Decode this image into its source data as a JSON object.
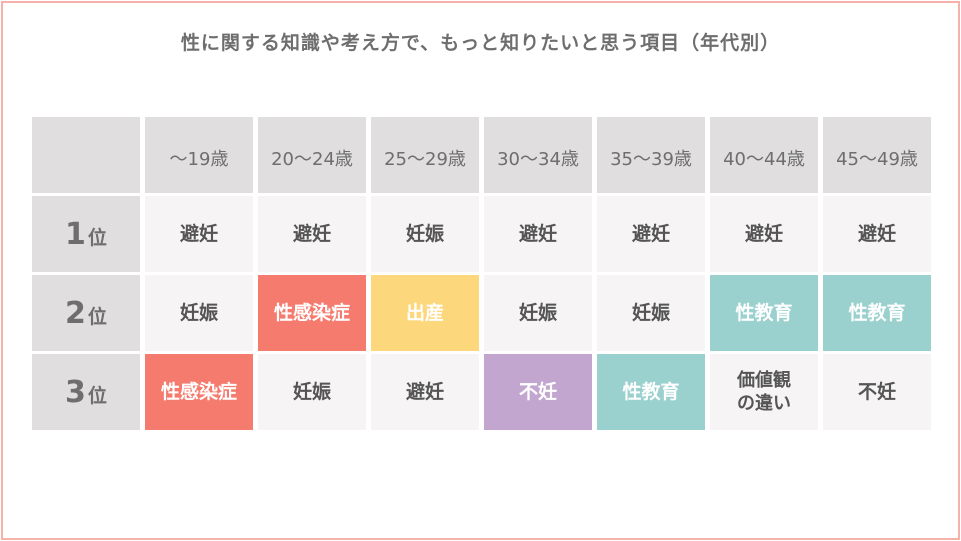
{
  "title": "性に関する知識や考え方で、もっと知りたいと思う項目（年代別）",
  "colors": {
    "border": "#f4b2aa",
    "header_bg": "#e0dede",
    "cell_bg": "#f6f4f4",
    "red": "#f57b6e",
    "yellow": "#fdd77b",
    "purple": "#c3a6d0",
    "teal": "#9ad1ce"
  },
  "columns": [
    "～19歳",
    "20～24歳",
    "25～29歳",
    "30～34歳",
    "35～39歳",
    "40～44歳",
    "45～49歳"
  ],
  "rows": [
    {
      "rank": "1",
      "suffix": "位",
      "cells": [
        {
          "text": "避妊",
          "color": "cell_bg"
        },
        {
          "text": "避妊",
          "color": "cell_bg"
        },
        {
          "text": "妊娠",
          "color": "cell_bg"
        },
        {
          "text": "避妊",
          "color": "cell_bg"
        },
        {
          "text": "避妊",
          "color": "cell_bg"
        },
        {
          "text": "避妊",
          "color": "cell_bg"
        },
        {
          "text": "避妊",
          "color": "cell_bg"
        }
      ]
    },
    {
      "rank": "2",
      "suffix": "位",
      "cells": [
        {
          "text": "妊娠",
          "color": "cell_bg"
        },
        {
          "text": "性感染症",
          "color": "red"
        },
        {
          "text": "出産",
          "color": "yellow"
        },
        {
          "text": "妊娠",
          "color": "cell_bg"
        },
        {
          "text": "妊娠",
          "color": "cell_bg"
        },
        {
          "text": "性教育",
          "color": "teal"
        },
        {
          "text": "性教育",
          "color": "teal"
        }
      ]
    },
    {
      "rank": "3",
      "suffix": "位",
      "cells": [
        {
          "text": "性感染症",
          "color": "red"
        },
        {
          "text": "妊娠",
          "color": "cell_bg"
        },
        {
          "text": "避妊",
          "color": "cell_bg"
        },
        {
          "text": "不妊",
          "color": "purple"
        },
        {
          "text": "性教育",
          "color": "teal"
        },
        {
          "text": "価値観\nの違い",
          "color": "cell_bg"
        },
        {
          "text": "不妊",
          "color": "cell_bg"
        }
      ]
    }
  ]
}
